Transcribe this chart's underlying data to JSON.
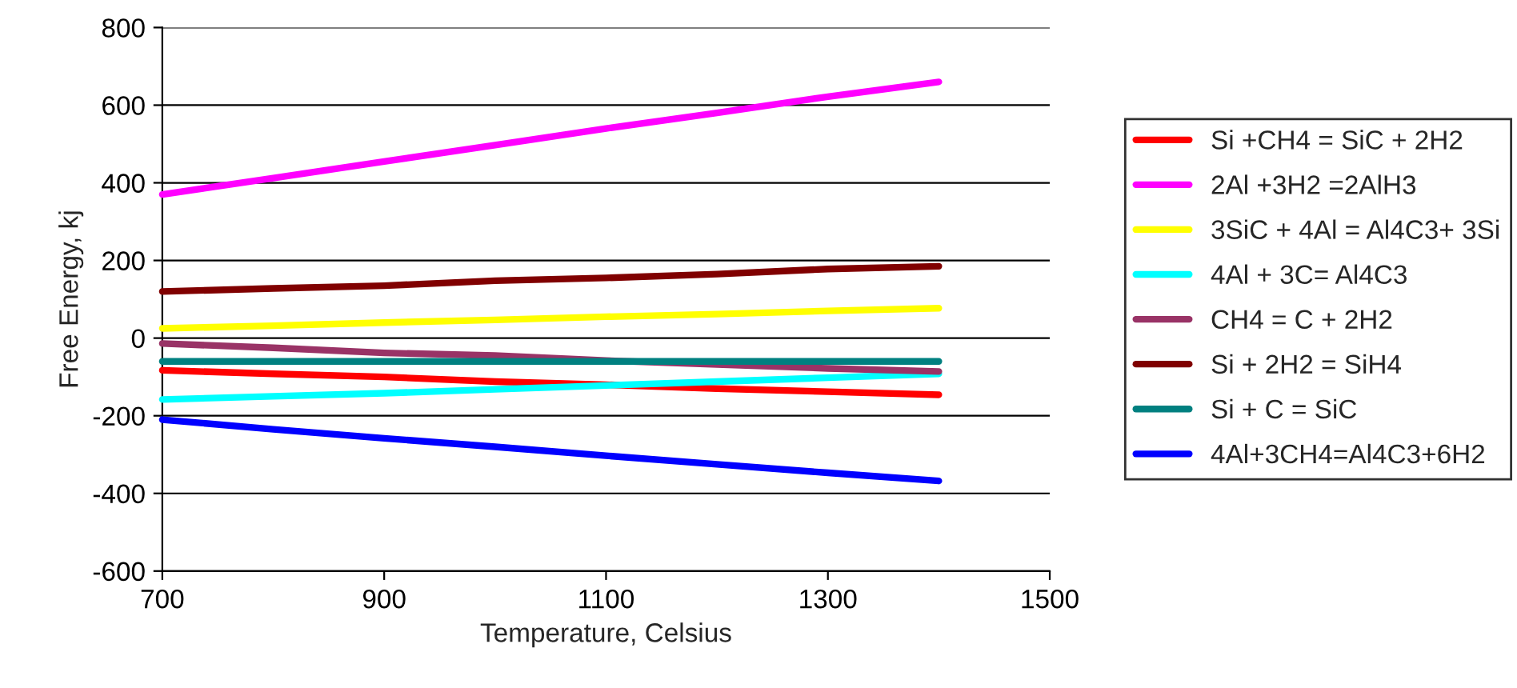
{
  "chart_data": {
    "type": "line",
    "xlabel": "Temperature, Celsius",
    "ylabel": "Free Energy, kj",
    "x": [
      700,
      800,
      900,
      1000,
      1100,
      1200,
      1300,
      1400
    ],
    "xlim": [
      700,
      1500
    ],
    "xticks": [
      700,
      900,
      1100,
      1300,
      1500
    ],
    "ylim": [
      -600,
      800
    ],
    "yticks": [
      -600,
      -400,
      -200,
      0,
      200,
      400,
      600,
      800
    ],
    "grid": "y",
    "legend": "right",
    "marker": "none",
    "line_style": "solid",
    "series": [
      {
        "name": "Si +CH4 = SiC + 2H2",
        "color": "#ff0000",
        "values": [
          -83,
          -92,
          -100,
          -112,
          -120,
          -130,
          -138,
          -146
        ]
      },
      {
        "name": "2Al +3H2 =2AlH3",
        "color": "#ff00ff",
        "values": [
          370,
          412,
          455,
          497,
          540,
          580,
          622,
          660
        ]
      },
      {
        "name": "3SiC + 4Al = Al4C3+ 3Si",
        "color": "#ffff00",
        "values": [
          25,
          32,
          40,
          47,
          55,
          62,
          70,
          77
        ]
      },
      {
        "name": "4Al + 3C= Al4C3",
        "color": "#00ffff",
        "values": [
          -158,
          -150,
          -142,
          -132,
          -122,
          -112,
          -102,
          -92
        ]
      },
      {
        "name": "CH4 = C + 2H2",
        "color": "#993366",
        "values": [
          -14,
          -25,
          -38,
          -45,
          -58,
          -68,
          -78,
          -86
        ]
      },
      {
        "name": "Si + 2H2 = SiH4",
        "color": "#800000",
        "values": [
          120,
          128,
          135,
          148,
          155,
          165,
          178,
          185
        ]
      },
      {
        "name": "Si + C = SiC",
        "color": "#008080",
        "values": [
          -60,
          -60,
          -60,
          -60,
          -60,
          -60,
          -60,
          -60
        ]
      },
      {
        "name": "4Al+3CH4=Al4C3+6H2",
        "color": "#0000ff",
        "values": [
          -210,
          -235,
          -258,
          -280,
          -303,
          -325,
          -347,
          -368
        ]
      }
    ]
  }
}
